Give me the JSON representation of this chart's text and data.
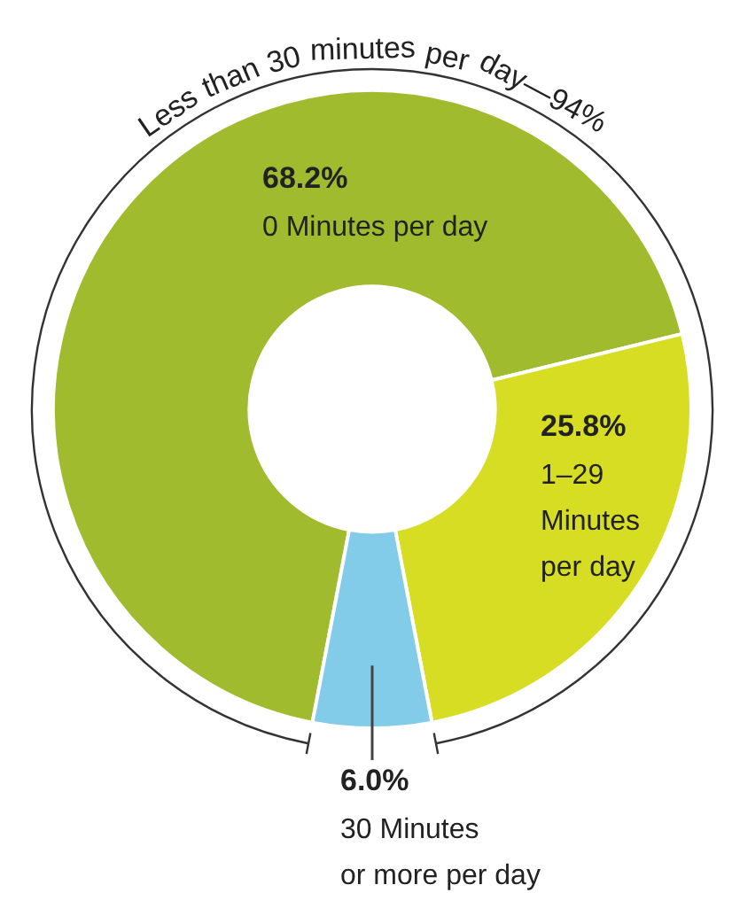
{
  "chart_data": {
    "type": "donut",
    "categories": [
      "0 Minutes per day",
      "1–29 Minutes per day",
      "30 Minutes or more per day"
    ],
    "values": [
      68.2,
      25.8,
      6.0
    ],
    "colors": [
      "#a0bb2e",
      "#d6dd22",
      "#82cbe9"
    ],
    "value_labels": [
      "68.2%",
      "25.8%",
      "6.0%"
    ],
    "annotations": [
      "Less than 30 minutes per day—94%"
    ],
    "legend": false
  }
}
